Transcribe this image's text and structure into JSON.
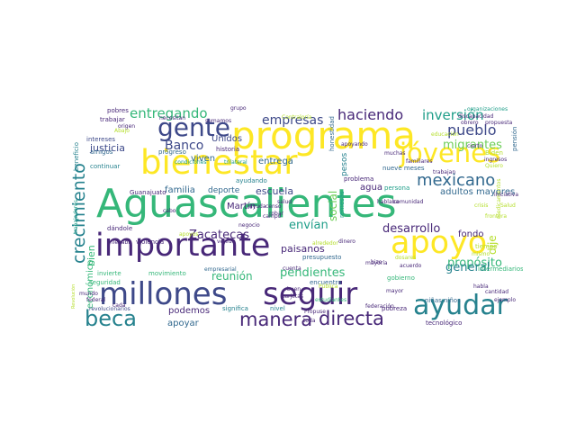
{
  "palette": {
    "yellow": "#fde725",
    "lime": "#b5de2b",
    "green": "#6ece58",
    "teal_green": "#35b779",
    "teal": "#1f9e89",
    "blue_teal": "#26828e",
    "blue": "#31688e",
    "indigo": "#3e4989",
    "purple": "#482878",
    "dark": "#440154"
  },
  "words": [
    {
      "text": "Aguascalientes",
      "color": "teal_green"
    },
    {
      "text": "programa",
      "color": "yellow"
    },
    {
      "text": "bienestar",
      "color": "yellow"
    },
    {
      "text": "importante",
      "color": "purple"
    },
    {
      "text": "millones",
      "color": "indigo"
    },
    {
      "text": "seguir",
      "color": "purple"
    },
    {
      "text": "apoyo",
      "color": "yellow"
    },
    {
      "text": "jóvenes",
      "color": "yellow"
    },
    {
      "text": "gente",
      "color": "indigo"
    },
    {
      "text": "ayudar",
      "color": "blue_teal"
    },
    {
      "text": "beca",
      "color": "blue_teal"
    },
    {
      "text": "manera",
      "color": "purple"
    },
    {
      "text": "directa",
      "color": "purple"
    },
    {
      "text": "crecimiento",
      "color": "blue_teal"
    },
    {
      "text": "mexicano",
      "color": "blue"
    },
    {
      "text": "haciendo",
      "color": "purple"
    },
    {
      "text": "inversión",
      "color": "teal"
    },
    {
      "text": "pueblo",
      "color": "indigo"
    },
    {
      "text": "entregando",
      "color": "teal_green"
    },
    {
      "text": "empresas",
      "color": "indigo"
    },
    {
      "text": "Banco",
      "color": "indigo"
    },
    {
      "text": "migrantes",
      "color": "green"
    },
    {
      "text": "desarrollo",
      "color": "purple"
    },
    {
      "text": "envían",
      "color": "teal"
    },
    {
      "text": "propósito",
      "color": "teal_green"
    },
    {
      "text": "pendientes",
      "color": "teal_green"
    },
    {
      "text": "general",
      "color": "blue_teal"
    },
    {
      "text": "social",
      "color": "green"
    },
    {
      "text": "Zacatecas",
      "color": "purple"
    },
    {
      "text": "reunión",
      "color": "teal_green"
    },
    {
      "text": "justicia",
      "color": "indigo"
    },
    {
      "text": "escuela",
      "color": "indigo"
    },
    {
      "text": "paisanos",
      "color": "purple"
    },
    {
      "text": "fondo",
      "color": "purple"
    },
    {
      "text": "entrega",
      "color": "blue"
    },
    {
      "text": "podemos",
      "color": "purple"
    },
    {
      "text": "apoyar",
      "color": "blue"
    },
    {
      "text": "Unidos",
      "color": "indigo"
    },
    {
      "text": "viven",
      "color": "blue"
    },
    {
      "text": "familia",
      "color": "blue"
    },
    {
      "text": "deporte",
      "color": "blue"
    },
    {
      "text": "Martín",
      "color": "purple"
    },
    {
      "text": "agua",
      "color": "purple"
    },
    {
      "text": "adultos mayores",
      "color": "blue"
    },
    {
      "text": "bien",
      "color": "teal_green"
    },
    {
      "text": "económico",
      "color": "teal_green"
    },
    {
      "text": "dije",
      "color": "lime"
    },
    {
      "text": "pobres",
      "color": "purple"
    },
    {
      "text": "trabajar",
      "color": "purple"
    },
    {
      "text": "beneficio",
      "color": "blue_teal"
    },
    {
      "text": "intereses",
      "color": "indigo"
    },
    {
      "text": "amigos",
      "color": "blue"
    },
    {
      "text": "progreso",
      "color": "blue"
    },
    {
      "text": "continuar",
      "color": "blue_teal"
    },
    {
      "text": "historia",
      "color": "purple"
    },
    {
      "text": "ayudando",
      "color": "blue_teal"
    },
    {
      "text": "nueve meses",
      "color": "blue"
    },
    {
      "text": "pesos",
      "color": "blue_teal"
    },
    {
      "text": "problema",
      "color": "purple"
    },
    {
      "text": "persona",
      "color": "teal"
    },
    {
      "text": "trabajadores",
      "color": "teal"
    },
    {
      "text": "Guanajuato",
      "color": "purple"
    },
    {
      "text": "dándole",
      "color": "purple"
    },
    {
      "text": "violencia",
      "color": "purple"
    },
    {
      "text": "empresarial",
      "color": "blue"
    },
    {
      "text": "presupuesto",
      "color": "blue"
    },
    {
      "text": "invierte",
      "color": "teal_green"
    },
    {
      "text": "movimiento",
      "color": "teal_green"
    },
    {
      "text": "encuentro",
      "color": "blue"
    },
    {
      "text": "gobierno",
      "color": "teal_green"
    },
    {
      "text": "niñas niños",
      "color": "blue"
    },
    {
      "text": "significa",
      "color": "blue_teal"
    },
    {
      "text": "nivel",
      "color": "blue_teal"
    },
    {
      "text": "pobreza",
      "color": "purple"
    },
    {
      "text": "tecnológico",
      "color": "purple"
    },
    {
      "text": "revolucionarios",
      "color": "indigo"
    },
    {
      "text": "seguridad",
      "color": "teal_green"
    },
    {
      "text": "honestidad",
      "color": "blue"
    },
    {
      "text": "pensión",
      "color": "blue"
    },
    {
      "text": "Biden",
      "color": "lime"
    },
    {
      "text": "ingresos",
      "color": "purple"
    },
    {
      "text": "Quiero",
      "color": "lime"
    },
    {
      "text": "Propuse",
      "color": "purple"
    },
    {
      "text": "tiempo",
      "color": "lime"
    },
    {
      "text": "mismo",
      "color": "lime"
    },
    {
      "text": "habla",
      "color": "purple"
    },
    {
      "text": "cantidad",
      "color": "purple"
    },
    {
      "text": "ejemplo",
      "color": "purple"
    },
    {
      "text": "dosares",
      "color": "lime"
    },
    {
      "text": "acuerdo",
      "color": "purple"
    },
    {
      "text": "remesas",
      "color": "teal"
    },
    {
      "text": "censo",
      "color": "purple"
    },
    {
      "text": "robar",
      "color": "purple"
    },
    {
      "text": "venido",
      "color": "purple"
    },
    {
      "text": "cabo",
      "color": "purple"
    },
    {
      "text": "federal",
      "color": "purple"
    },
    {
      "text": "mundo",
      "color": "purple"
    },
    {
      "text": "cuenta",
      "color": "purple"
    },
    {
      "text": "buen",
      "color": "purple"
    },
    {
      "text": "salud",
      "color": "purple"
    },
    {
      "text": "dinero",
      "color": "purple"
    },
    {
      "text": "muchas",
      "color": "purple"
    },
    {
      "text": "estudiantes",
      "color": "teal_green"
    },
    {
      "text": "hizo",
      "color": "purple"
    },
    {
      "text": "toda",
      "color": "purple"
    },
    {
      "text": "mayoría",
      "color": "purple"
    },
    {
      "text": "apoyando",
      "color": "purple"
    },
    {
      "text": "condiciones",
      "color": "teal"
    },
    {
      "text": "trilateral",
      "color": "teal"
    },
    {
      "text": "necesitan",
      "color": "purple"
    },
    {
      "text": "sumamos",
      "color": "purple"
    },
    {
      "text": "origen",
      "color": "purple"
    },
    {
      "text": "grupo",
      "color": "purple"
    },
    {
      "text": "organizaciones",
      "color": "teal"
    },
    {
      "text": "discapacidad",
      "color": "purple"
    },
    {
      "text": "propuesta",
      "color": "purple"
    },
    {
      "text": "familiares",
      "color": "purple"
    },
    {
      "text": "trabajan",
      "color": "purple"
    },
    {
      "text": "obrero",
      "color": "purple"
    },
    {
      "text": "intermediarios",
      "color": "teal_green"
    },
    {
      "text": "hablaba",
      "color": "purple"
    },
    {
      "text": "llegaba",
      "color": "purple"
    },
    {
      "text": "Revolución",
      "color": "lime"
    },
    {
      "text": "ayuda",
      "color": "purple"
    },
    {
      "text": "apoyos",
      "color": "lime"
    },
    {
      "text": "federación",
      "color": "purple"
    },
    {
      "text": "cada",
      "color": "purple"
    },
    {
      "text": "campo",
      "color": "purple"
    },
    {
      "text": "alrededor",
      "color": "lime"
    },
    {
      "text": "Contraloría",
      "color": "lime"
    },
    {
      "text": "Salud",
      "color": "lime"
    },
    {
      "text": "medicamentos",
      "color": "lime"
    },
    {
      "text": "educación",
      "color": "lime"
    },
    {
      "text": "Abajo",
      "color": "lime"
    },
    {
      "text": "Pública",
      "color": "lime"
    },
    {
      "text": "negocio",
      "color": "purple"
    },
    {
      "text": "crisis",
      "color": "lime"
    },
    {
      "text": "iniciativa",
      "color": "purple"
    },
    {
      "text": "mayor",
      "color": "purple"
    },
    {
      "text": "tarjetas",
      "color": "purple"
    },
    {
      "text": "frontera",
      "color": "lime"
    },
    {
      "text": "cierto",
      "color": "purple"
    },
    {
      "text": "comunidad",
      "color": "purple"
    }
  ]
}
